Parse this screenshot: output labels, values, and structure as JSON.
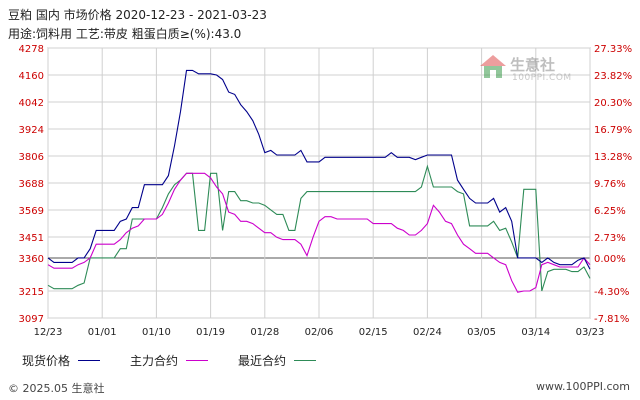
{
  "header": {
    "title": "豆粕 国内 市场价格 2020-12-23 - 2021-03-23",
    "subtitle": "用途:饲料用 工艺:带皮 粗蛋白质≥(%):43.0"
  },
  "logo": {
    "text": "生意社",
    "url": "100PPI.COM"
  },
  "footer": {
    "copyright": "© 2025.05 生意社",
    "site": "www.100PPI.com"
  },
  "colors": {
    "price": "#00008b",
    "main": "#cc00cc",
    "recent": "#2e8b57",
    "grid": "#d0d0d0",
    "baseline": "#555555",
    "axis_text": "#cc0000"
  },
  "chart_data": {
    "type": "line",
    "title": "",
    "xlabel": "",
    "ylabel": "",
    "x": [
      "12/23",
      "12/24",
      "12/25",
      "12/26",
      "12/27",
      "12/28",
      "12/29",
      "12/30",
      "12/31",
      "01/01",
      "01/02",
      "01/03",
      "01/04",
      "01/05",
      "01/06",
      "01/07",
      "01/08",
      "01/09",
      "01/10",
      "01/11",
      "01/12",
      "01/13",
      "01/14",
      "01/15",
      "01/16",
      "01/17",
      "01/18",
      "01/19",
      "01/20",
      "01/21",
      "01/22",
      "01/23",
      "01/24",
      "01/25",
      "01/26",
      "01/27",
      "01/28",
      "01/29",
      "01/30",
      "01/31",
      "02/01",
      "02/02",
      "02/03",
      "02/04",
      "02/05",
      "02/06",
      "02/07",
      "02/08",
      "02/09",
      "02/10",
      "02/11",
      "02/12",
      "02/13",
      "02/14",
      "02/15",
      "02/16",
      "02/17",
      "02/18",
      "02/19",
      "02/20",
      "02/21",
      "02/22",
      "02/23",
      "02/24",
      "02/25",
      "02/26",
      "02/27",
      "02/28",
      "03/01",
      "03/02",
      "03/03",
      "03/04",
      "03/05",
      "03/06",
      "03/07",
      "03/08",
      "03/09",
      "03/10",
      "03/11",
      "03/12",
      "03/13",
      "03/14",
      "03/15",
      "03/16",
      "03/17",
      "03/18",
      "03/19",
      "03/20",
      "03/21",
      "03/22",
      "03/23"
    ],
    "x_ticks": [
      "12/23",
      "01/01",
      "01/10",
      "01/19",
      "01/28",
      "02/06",
      "02/15",
      "02/24",
      "03/05",
      "03/14",
      "03/23"
    ],
    "y_left_ticks": [
      "4278",
      "4160",
      "4042",
      "3924",
      "3806",
      "3688",
      "3569",
      "3451",
      "3360",
      "3215",
      "3097"
    ],
    "y_right_ticks": [
      "27.33%",
      "23.82%",
      "20.30%",
      "16.79%",
      "13.28%",
      "9.76%",
      "6.25%",
      "2.73%",
      "0.00%",
      "-4.30%",
      "-7.81%"
    ],
    "ylim": [
      3097,
      4278
    ],
    "baseline": 3360,
    "series": [
      {
        "name": "现货价格",
        "values": [
          3360,
          3340,
          3340,
          3340,
          3340,
          3360,
          3360,
          3400,
          3480,
          3480,
          3480,
          3480,
          3520,
          3530,
          3580,
          3580,
          3680,
          3680,
          3680,
          3680,
          3720,
          3850,
          4000,
          4180,
          4180,
          4165,
          4165,
          4165,
          4160,
          4140,
          4085,
          4075,
          4030,
          4000,
          3960,
          3900,
          3820,
          3830,
          3810,
          3810,
          3810,
          3810,
          3830,
          3780,
          3780,
          3780,
          3800,
          3800,
          3800,
          3800,
          3800,
          3800,
          3800,
          3800,
          3800,
          3800,
          3800,
          3820,
          3800,
          3800,
          3800,
          3790,
          3800,
          3810,
          3810,
          3810,
          3810,
          3810,
          3700,
          3660,
          3620,
          3600,
          3600,
          3600,
          3620,
          3560,
          3580,
          3520,
          3360,
          3360,
          3360,
          3360,
          3340,
          3360,
          3340,
          3330,
          3330,
          3330,
          3350,
          3360,
          3310
        ]
      },
      {
        "name": "主力合约",
        "values": [
          3330,
          3315,
          3315,
          3315,
          3315,
          3330,
          3340,
          3360,
          3420,
          3420,
          3420,
          3420,
          3440,
          3470,
          3490,
          3500,
          3530,
          3530,
          3530,
          3550,
          3600,
          3660,
          3700,
          3730,
          3730,
          3730,
          3730,
          3710,
          3670,
          3640,
          3560,
          3550,
          3520,
          3520,
          3510,
          3490,
          3470,
          3470,
          3450,
          3440,
          3440,
          3440,
          3420,
          3370,
          3450,
          3520,
          3540,
          3540,
          3530,
          3530,
          3530,
          3530,
          3530,
          3530,
          3510,
          3510,
          3510,
          3510,
          3490,
          3480,
          3460,
          3460,
          3480,
          3510,
          3590,
          3560,
          3520,
          3510,
          3460,
          3420,
          3400,
          3380,
          3380,
          3380,
          3360,
          3340,
          3330,
          3260,
          3210,
          3215,
          3215,
          3230,
          3330,
          3340,
          3330,
          3320,
          3320,
          3320,
          3320,
          3360,
          3330
        ]
      },
      {
        "name": "最近合约",
        "values": [
          3240,
          3225,
          3225,
          3225,
          3225,
          3240,
          3250,
          3360,
          3360,
          3360,
          3360,
          3360,
          3400,
          3400,
          3530,
          3530,
          3530,
          3530,
          3530,
          3580,
          3640,
          3680,
          3700,
          3730,
          3730,
          3480,
          3480,
          3730,
          3730,
          3480,
          3650,
          3650,
          3610,
          3610,
          3600,
          3600,
          3590,
          3570,
          3550,
          3550,
          3480,
          3480,
          3620,
          3650,
          3650,
          3650,
          3650,
          3650,
          3650,
          3650,
          3650,
          3650,
          3650,
          3650,
          3650,
          3650,
          3650,
          3650,
          3650,
          3650,
          3650,
          3650,
          3670,
          3760,
          3670,
          3670,
          3670,
          3670,
          3650,
          3640,
          3500,
          3500,
          3500,
          3500,
          3520,
          3480,
          3490,
          3430,
          3360,
          3660,
          3660,
          3660,
          3215,
          3300,
          3310,
          3310,
          3310,
          3300,
          3300,
          3320,
          3270
        ]
      }
    ]
  }
}
